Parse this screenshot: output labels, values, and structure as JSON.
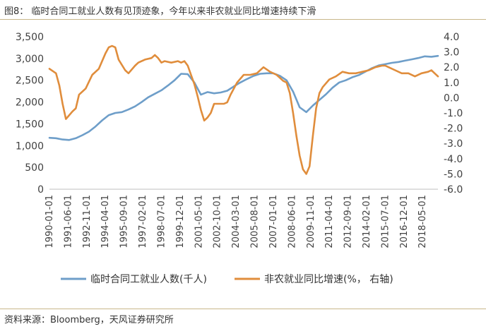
{
  "title": "图8： 临时合同工就业人数有见顶迹象，今年以来非农就业同比增速持续下滑",
  "source": "资料来源：Bloomberg，天风证券研究所",
  "chart_data": {
    "type": "line",
    "grid": false,
    "legend_position": "bottom",
    "x_tick_labels": [
      "1990-01-01",
      "1991-06-01",
      "1992-11-01",
      "1994-04-01",
      "1995-09-01",
      "1997-02-01",
      "1998-07-01",
      "1999-12-01",
      "2001-05-01",
      "2002-10-01",
      "2004-03-01",
      "2005-08-01",
      "2007-01-01",
      "2008-06-01",
      "2009-11-01",
      "2011-04-01",
      "2012-09-01",
      "2014-02-01",
      "2015-07-01",
      "2016-12-01",
      "2018-05-01"
    ],
    "x_range": [
      "1990-01",
      "2019-07"
    ],
    "y_left": {
      "min": 0,
      "max": 3500,
      "ticks": [
        "0",
        "500",
        "1,000",
        "1,500",
        "2,000",
        "2,500",
        "3,000",
        "3,500"
      ]
    },
    "y_right": {
      "min": -6,
      "max": 4,
      "ticks": [
        "4.0",
        "3.0",
        "2.0",
        "1.0",
        "0.0",
        "-1.0",
        "-2.0",
        "-3.0",
        "-4.0",
        "-5.0",
        "-6.0"
      ]
    },
    "series": [
      {
        "name": "临时合同工就业人数(千人)",
        "axis": "left",
        "color": "#6e9ec9",
        "points": [
          [
            "1990-01",
            1180
          ],
          [
            "1990-07",
            1170
          ],
          [
            "1991-01",
            1140
          ],
          [
            "1991-07",
            1130
          ],
          [
            "1992-01",
            1170
          ],
          [
            "1992-07",
            1240
          ],
          [
            "1993-01",
            1320
          ],
          [
            "1993-07",
            1440
          ],
          [
            "1994-01",
            1580
          ],
          [
            "1994-07",
            1700
          ],
          [
            "1995-01",
            1750
          ],
          [
            "1995-07",
            1770
          ],
          [
            "1996-01",
            1830
          ],
          [
            "1996-07",
            1900
          ],
          [
            "1997-01",
            2000
          ],
          [
            "1997-07",
            2110
          ],
          [
            "1998-01",
            2190
          ],
          [
            "1998-07",
            2270
          ],
          [
            "1999-01",
            2380
          ],
          [
            "1999-07",
            2500
          ],
          [
            "2000-01",
            2650
          ],
          [
            "2000-07",
            2640
          ],
          [
            "2001-01",
            2450
          ],
          [
            "2001-07",
            2170
          ],
          [
            "2002-01",
            2230
          ],
          [
            "2002-07",
            2200
          ],
          [
            "2003-01",
            2220
          ],
          [
            "2003-07",
            2260
          ],
          [
            "2004-01",
            2360
          ],
          [
            "2004-07",
            2450
          ],
          [
            "2005-01",
            2530
          ],
          [
            "2005-07",
            2600
          ],
          [
            "2006-01",
            2650
          ],
          [
            "2006-07",
            2660
          ],
          [
            "2007-01",
            2660
          ],
          [
            "2007-07",
            2600
          ],
          [
            "2008-01",
            2500
          ],
          [
            "2008-07",
            2240
          ],
          [
            "2009-01",
            1880
          ],
          [
            "2009-07",
            1770
          ],
          [
            "2010-01",
            1920
          ],
          [
            "2010-07",
            2050
          ],
          [
            "2011-01",
            2180
          ],
          [
            "2011-07",
            2330
          ],
          [
            "2012-01",
            2450
          ],
          [
            "2012-07",
            2500
          ],
          [
            "2013-01",
            2570
          ],
          [
            "2013-07",
            2620
          ],
          [
            "2014-01",
            2700
          ],
          [
            "2014-07",
            2780
          ],
          [
            "2015-01",
            2840
          ],
          [
            "2015-07",
            2870
          ],
          [
            "2016-01",
            2900
          ],
          [
            "2016-07",
            2920
          ],
          [
            "2017-01",
            2950
          ],
          [
            "2017-07",
            2980
          ],
          [
            "2018-01",
            3010
          ],
          [
            "2018-07",
            3050
          ],
          [
            "2019-01",
            3040
          ],
          [
            "2019-07",
            3060
          ]
        ]
      },
      {
        "name": "非农就业同比增速(%， 右轴)",
        "axis": "right",
        "color": "#e08d3c",
        "points": [
          [
            "1990-01",
            1.9
          ],
          [
            "1990-07",
            1.6
          ],
          [
            "1990-10",
            0.8
          ],
          [
            "1991-01",
            -0.4
          ],
          [
            "1991-04",
            -1.4
          ],
          [
            "1991-10",
            -0.9
          ],
          [
            "1992-01",
            -0.7
          ],
          [
            "1992-04",
            0.2
          ],
          [
            "1992-10",
            0.6
          ],
          [
            "1993-04",
            1.5
          ],
          [
            "1993-10",
            1.9
          ],
          [
            "1994-04",
            2.9
          ],
          [
            "1994-07",
            3.3
          ],
          [
            "1994-10",
            3.4
          ],
          [
            "1995-01",
            3.3
          ],
          [
            "1995-04",
            2.5
          ],
          [
            "1995-10",
            1.8
          ],
          [
            "1996-01",
            1.6
          ],
          [
            "1996-07",
            2.1
          ],
          [
            "1996-10",
            2.3
          ],
          [
            "1997-04",
            2.5
          ],
          [
            "1997-10",
            2.6
          ],
          [
            "1998-01",
            2.8
          ],
          [
            "1998-04",
            2.6
          ],
          [
            "1998-07",
            2.3
          ],
          [
            "1998-10",
            2.4
          ],
          [
            "1999-04",
            2.3
          ],
          [
            "1999-10",
            2.4
          ],
          [
            "2000-01",
            2.3
          ],
          [
            "2000-04",
            2.4
          ],
          [
            "2000-07",
            2.1
          ],
          [
            "2000-10",
            1.5
          ],
          [
            "2001-01",
            0.9
          ],
          [
            "2001-04",
            0.1
          ],
          [
            "2001-07",
            -0.8
          ],
          [
            "2001-10",
            -1.5
          ],
          [
            "2002-01",
            -1.3
          ],
          [
            "2002-04",
            -1.0
          ],
          [
            "2002-07",
            -0.4
          ],
          [
            "2002-10",
            -0.4
          ],
          [
            "2003-04",
            -0.4
          ],
          [
            "2003-07",
            -0.3
          ],
          [
            "2003-10",
            0.2
          ],
          [
            "2004-04",
            1.0
          ],
          [
            "2004-10",
            1.5
          ],
          [
            "2005-04",
            1.5
          ],
          [
            "2005-10",
            1.6
          ],
          [
            "2006-04",
            2.0
          ],
          [
            "2006-10",
            1.7
          ],
          [
            "2007-04",
            1.5
          ],
          [
            "2007-10",
            1.1
          ],
          [
            "2008-01",
            1.0
          ],
          [
            "2008-04",
            0.3
          ],
          [
            "2008-07",
            -1.0
          ],
          [
            "2008-10",
            -2.5
          ],
          [
            "2009-01",
            -3.8
          ],
          [
            "2009-04",
            -4.7
          ],
          [
            "2009-07",
            -5.0
          ],
          [
            "2009-10",
            -4.5
          ],
          [
            "2010-01",
            -2.5
          ],
          [
            "2010-04",
            -0.7
          ],
          [
            "2010-07",
            0.3
          ],
          [
            "2010-10",
            0.7
          ],
          [
            "2011-04",
            1.2
          ],
          [
            "2011-10",
            1.4
          ],
          [
            "2012-04",
            1.7
          ],
          [
            "2012-10",
            1.6
          ],
          [
            "2013-04",
            1.6
          ],
          [
            "2013-10",
            1.7
          ],
          [
            "2014-04",
            1.8
          ],
          [
            "2014-10",
            2.0
          ],
          [
            "2015-04",
            2.1
          ],
          [
            "2015-07",
            2.1
          ],
          [
            "2015-10",
            2.0
          ],
          [
            "2016-04",
            1.8
          ],
          [
            "2016-10",
            1.6
          ],
          [
            "2017-04",
            1.6
          ],
          [
            "2017-10",
            1.4
          ],
          [
            "2018-04",
            1.6
          ],
          [
            "2018-10",
            1.7
          ],
          [
            "2019-01",
            1.8
          ],
          [
            "2019-04",
            1.6
          ],
          [
            "2019-07",
            1.4
          ]
        ]
      }
    ]
  }
}
